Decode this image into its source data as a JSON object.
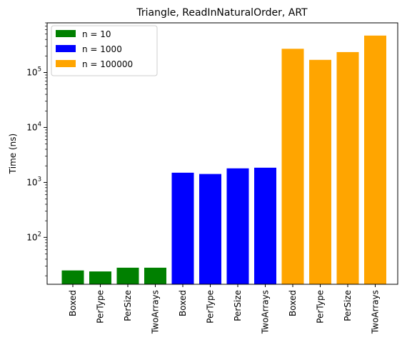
{
  "chart_data": {
    "type": "bar",
    "title": "Triangle, ReadInNaturalOrder, ART",
    "xlabel": "",
    "ylabel": "Time (ns)",
    "yscale": "log",
    "ylim": [
      14,
      800000
    ],
    "grid": false,
    "legend_position": "top-left",
    "categories": [
      "Boxed",
      "PerType",
      "PerSize",
      "TwoArrays",
      "Boxed",
      "PerType",
      "PerSize",
      "TwoArrays",
      "Boxed",
      "PerType",
      "PerSize",
      "TwoArrays"
    ],
    "series": [
      {
        "name": "n = 10",
        "color": "#008000",
        "values": [
          25,
          24,
          28,
          28,
          null,
          null,
          null,
          null,
          null,
          null,
          null,
          null
        ]
      },
      {
        "name": "n = 1000",
        "color": "#0000ff",
        "values": [
          null,
          null,
          null,
          null,
          1500,
          1420,
          1800,
          1850,
          null,
          null,
          null,
          null
        ]
      },
      {
        "name": "n = 100000",
        "color": "#ffa500",
        "values": [
          null,
          null,
          null,
          null,
          null,
          null,
          null,
          null,
          270000,
          170000,
          235000,
          470000
        ]
      }
    ],
    "y_ticks": [
      {
        "value": 100,
        "base": "10",
        "exp": "2"
      },
      {
        "value": 1000,
        "base": "10",
        "exp": "3"
      },
      {
        "value": 10000,
        "base": "10",
        "exp": "4"
      },
      {
        "value": 100000,
        "base": "10",
        "exp": "5"
      }
    ]
  }
}
